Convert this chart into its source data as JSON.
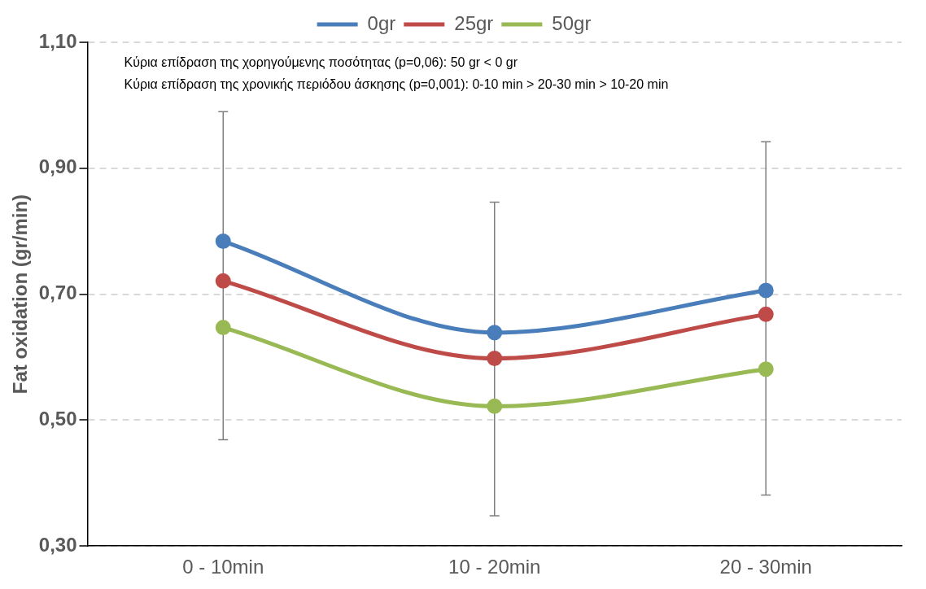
{
  "chart_data": {
    "type": "line",
    "ylabel": "Fat oxidation (gr/min)",
    "categories": [
      "0 - 10min",
      "10 - 20min",
      "20 - 30min"
    ],
    "series": [
      {
        "name": "0gr",
        "color": "#4a7ebb",
        "values": [
          0.784,
          0.639,
          0.706
        ]
      },
      {
        "name": "25gr",
        "color": "#be4b48",
        "values": [
          0.721,
          0.598,
          0.668
        ],
        "errors": [
          [
            0.469,
            0.99
          ],
          [
            0.348,
            0.846
          ],
          [
            0.381,
            0.942
          ]
        ]
      },
      {
        "name": "50gr",
        "color": "#98b954",
        "values": [
          0.647,
          0.522,
          0.581
        ]
      }
    ],
    "ylim": [
      0.3,
      1.1
    ],
    "yticks": [
      {
        "value": 0.3,
        "label": "0,30"
      },
      {
        "value": 0.5,
        "label": "0,50"
      },
      {
        "value": 0.7,
        "label": "0,70"
      },
      {
        "value": 0.9,
        "label": "0,90"
      },
      {
        "value": 1.1,
        "label": "1,10"
      }
    ],
    "grid": "y",
    "legend": "top",
    "marker": "circle",
    "line_style": "solid",
    "annotations": [
      "Κύρια επίδραση της χορηγούμενης ποσότητας (p=0,06): 50 gr < 0 gr",
      "Κύρια επίδραση της χρονικής περιόδου άσκησης (p=0,001): 0-10 min > 20-30 min > 10-20 min"
    ]
  }
}
